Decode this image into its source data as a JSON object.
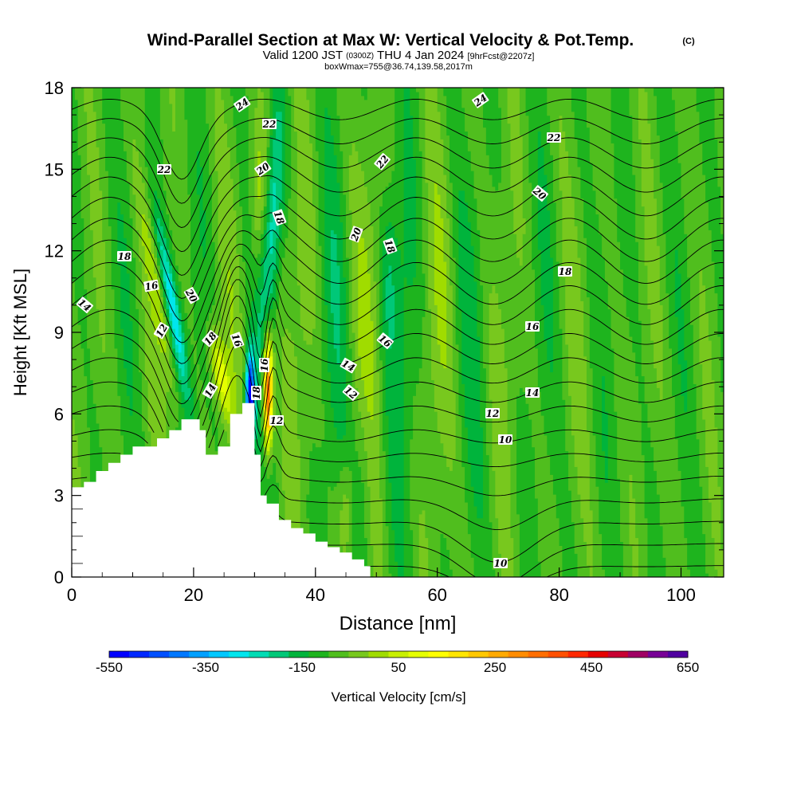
{
  "chart_data": {
    "type": "heatmap",
    "title": "Wind-Parallel Section at Max W: Vertical Velocity & Pot.Temp.",
    "title_mark": "(C)",
    "subtitle": {
      "valid_prefix": "Valid 1200 JST",
      "utc": "(0300Z)",
      "date": "THU 4 Jan 2024",
      "forecast": "[9hrFcst@2207z]"
    },
    "subtitle2": "boxWmax=755@36.74,139.58,2017m",
    "xlabel": "Distance [nm]",
    "ylabel": "Height [Kft MSL]",
    "xlim": [
      0,
      107
    ],
    "ylim": [
      0,
      18
    ],
    "x_ticks": [
      "0",
      "20",
      "40",
      "60",
      "80",
      "100"
    ],
    "x_tick_values": [
      0,
      20,
      40,
      60,
      80,
      100
    ],
    "y_ticks": [
      "0",
      "3",
      "6",
      "9",
      "12",
      "15",
      "18"
    ],
    "y_tick_values": [
      0,
      3,
      6,
      9,
      12,
      15,
      18
    ],
    "colorbar": {
      "label": "Vertical Velocity [cm/s]",
      "tick_labels": [
        "-550",
        "-350",
        "-150",
        "50",
        "250",
        "450",
        "650"
      ],
      "tick_values": [
        -550,
        -350,
        -150,
        50,
        250,
        450,
        650
      ],
      "min": -550,
      "max": 650,
      "step": 50,
      "colors": [
        "#0000ff",
        "#0028ff",
        "#0050ff",
        "#0078ff",
        "#00a0ff",
        "#00c8ff",
        "#00e6ee",
        "#00dcb4",
        "#00c878",
        "#00b43c",
        "#1eb41e",
        "#50be1e",
        "#78c81e",
        "#a0dc00",
        "#c8f000",
        "#e6ff00",
        "#ffff00",
        "#ffe600",
        "#ffc800",
        "#ffaa00",
        "#ff8c00",
        "#ff6e00",
        "#ff5000",
        "#ff2800",
        "#e60000",
        "#c80032",
        "#a00064",
        "#780096",
        "#5000a0"
      ]
    },
    "contour_labels": [
      "24",
      "24",
      "22",
      "22",
      "22",
      "22",
      "20",
      "20",
      "20",
      "20",
      "18",
      "18",
      "18",
      "18",
      "18",
      "18",
      "16",
      "16",
      "16",
      "16",
      "16",
      "14",
      "14",
      "14",
      "14",
      "12",
      "12",
      "12",
      "12",
      "10",
      "10"
    ],
    "potential_temperature_contours": [
      10,
      12,
      14,
      16,
      18,
      20,
      22,
      24
    ],
    "terrain_height_kft": [
      [
        0,
        3.3
      ],
      [
        2,
        3.5
      ],
      [
        4,
        3.9
      ],
      [
        6,
        4.2
      ],
      [
        8,
        4.5
      ],
      [
        10,
        4.8
      ],
      [
        12,
        4.8
      ],
      [
        14,
        5.1
      ],
      [
        16,
        5.4
      ],
      [
        18,
        5.8
      ],
      [
        20,
        5.8
      ],
      [
        21,
        5.4
      ],
      [
        22,
        4.5
      ],
      [
        24,
        4.8
      ],
      [
        26,
        6.0
      ],
      [
        28,
        6.4
      ],
      [
        29,
        6.4
      ],
      [
        30,
        4.5
      ],
      [
        31,
        3.0
      ],
      [
        32,
        2.7
      ],
      [
        34,
        2.1
      ],
      [
        36,
        1.8
      ],
      [
        38,
        1.6
      ],
      [
        40,
        1.3
      ],
      [
        42,
        1.1
      ],
      [
        44,
        0.9
      ],
      [
        46,
        0.65
      ],
      [
        48,
        0.4
      ],
      [
        49,
        0.2
      ]
    ],
    "features": {
      "strongest_updraft": "~550 cm/s near x=32 nm, 5–9 kft",
      "strongest_downdraft": "~-550 cm/s near x=29 nm, 5–9 kft"
    }
  }
}
